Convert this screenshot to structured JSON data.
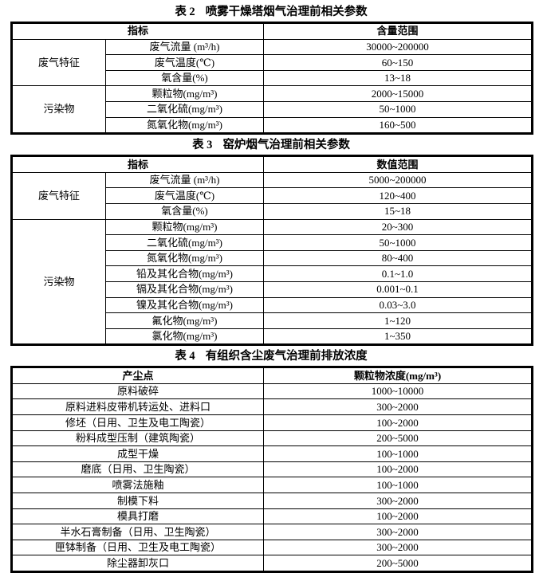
{
  "page": {
    "background_color": "#ffffff",
    "text_color": "#000000",
    "border_color": "#000000"
  },
  "tables": [
    {
      "caption_label": "表 2",
      "caption_title": "喷雾干燥塔烟气治理前相关参数",
      "columns": [
        "指标",
        "含量范围"
      ],
      "groups": [
        {
          "category": "废气特征",
          "rows": [
            {
              "indicator": "废气流量 (m³/h)",
              "value": "30000~200000"
            },
            {
              "indicator": "废气温度(℃)",
              "value": "60~150"
            },
            {
              "indicator": "氧含量(%)",
              "value": "13~18"
            }
          ]
        },
        {
          "category": "污染物",
          "rows": [
            {
              "indicator": "颗粒物(mg/m³)",
              "value": "2000~15000"
            },
            {
              "indicator": "二氧化硫(mg/m³)",
              "value": "50~1000"
            },
            {
              "indicator": "氮氧化物(mg/m³)",
              "value": "160~500"
            }
          ]
        }
      ]
    },
    {
      "caption_label": "表 3",
      "caption_title": "窑炉烟气治理前相关参数",
      "columns": [
        "指标",
        "数值范围"
      ],
      "groups": [
        {
          "category": "废气特征",
          "rows": [
            {
              "indicator": "废气流量 (m³/h)",
              "value": "5000~200000"
            },
            {
              "indicator": "废气温度(℃)",
              "value": "120~400"
            },
            {
              "indicator": "氧含量(%)",
              "value": "15~18"
            }
          ]
        },
        {
          "category": "污染物",
          "rows": [
            {
              "indicator": "颗粒物(mg/m³)",
              "value": "20~300"
            },
            {
              "indicator": "二氧化硫(mg/m³)",
              "value": "50~1000"
            },
            {
              "indicator": "氮氧化物(mg/m³)",
              "value": "80~400"
            },
            {
              "indicator": "铅及其化合物(mg/m³)",
              "value": "0.1~1.0"
            },
            {
              "indicator": "镉及其化合物(mg/m³)",
              "value": "0.001~0.1"
            },
            {
              "indicator": "镍及其化合物(mg/m³)",
              "value": "0.03~3.0"
            },
            {
              "indicator": "氟化物(mg/m³)",
              "value": "1~120"
            },
            {
              "indicator": "氯化物(mg/m³)",
              "value": "1~350"
            }
          ]
        }
      ]
    },
    {
      "caption_label": "表 4",
      "caption_title": "有组织含尘废气治理前排放浓度",
      "columns": [
        "产尘点",
        "颗粒物浓度(mg/m³)"
      ],
      "rows": [
        {
          "source": "原料破碎",
          "value": "1000~10000"
        },
        {
          "source": "原料进料皮带机转运处、进料口",
          "value": "300~2000"
        },
        {
          "source": "修坯（日用、卫生及电工陶瓷）",
          "value": "100~2000"
        },
        {
          "source": "粉料成型压制（建筑陶瓷）",
          "value": "200~5000"
        },
        {
          "source": "成型干燥",
          "value": "100~1000"
        },
        {
          "source": "磨底（日用、卫生陶瓷）",
          "value": "100~2000"
        },
        {
          "source": "喷雾法施釉",
          "value": "100~1000"
        },
        {
          "source": "制模下料",
          "value": "300~2000"
        },
        {
          "source": "模具打磨",
          "value": "100~2000"
        },
        {
          "source": "半水石膏制备（日用、卫生陶瓷）",
          "value": "300~2000"
        },
        {
          "source": "匣钵制备（日用、卫生及电工陶瓷）",
          "value": "300~2000"
        },
        {
          "source": "除尘器卸灰口",
          "value": "200~5000"
        }
      ]
    }
  ]
}
